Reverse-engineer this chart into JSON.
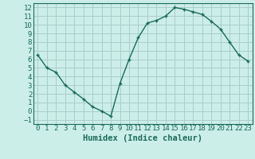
{
  "x": [
    0,
    1,
    2,
    3,
    4,
    5,
    6,
    7,
    8,
    9,
    10,
    11,
    12,
    13,
    14,
    15,
    16,
    17,
    18,
    19,
    20,
    21,
    22,
    23
  ],
  "y": [
    6.5,
    5.0,
    4.5,
    3.0,
    2.2,
    1.4,
    0.5,
    0.0,
    -0.6,
    3.2,
    6.0,
    8.5,
    10.2,
    10.5,
    11.0,
    12.0,
    11.8,
    11.5,
    11.2,
    10.4,
    9.5,
    8.0,
    6.5,
    5.8
  ],
  "line_color": "#1a6b5a",
  "bg_color": "#cceee8",
  "grid_color": "#aacccc",
  "xlabel": "Humidex (Indice chaleur)",
  "ylim": [
    -1.5,
    12.5
  ],
  "xlim": [
    -0.5,
    23.5
  ],
  "yticks": [
    -1,
    0,
    1,
    2,
    3,
    4,
    5,
    6,
    7,
    8,
    9,
    10,
    11,
    12
  ],
  "xticks": [
    0,
    1,
    2,
    3,
    4,
    5,
    6,
    7,
    8,
    9,
    10,
    11,
    12,
    13,
    14,
    15,
    16,
    17,
    18,
    19,
    20,
    21,
    22,
    23
  ],
  "tick_fontsize": 6.5,
  "xlabel_fontsize": 7.5,
  "marker_size": 3.5,
  "line_width": 1.0
}
